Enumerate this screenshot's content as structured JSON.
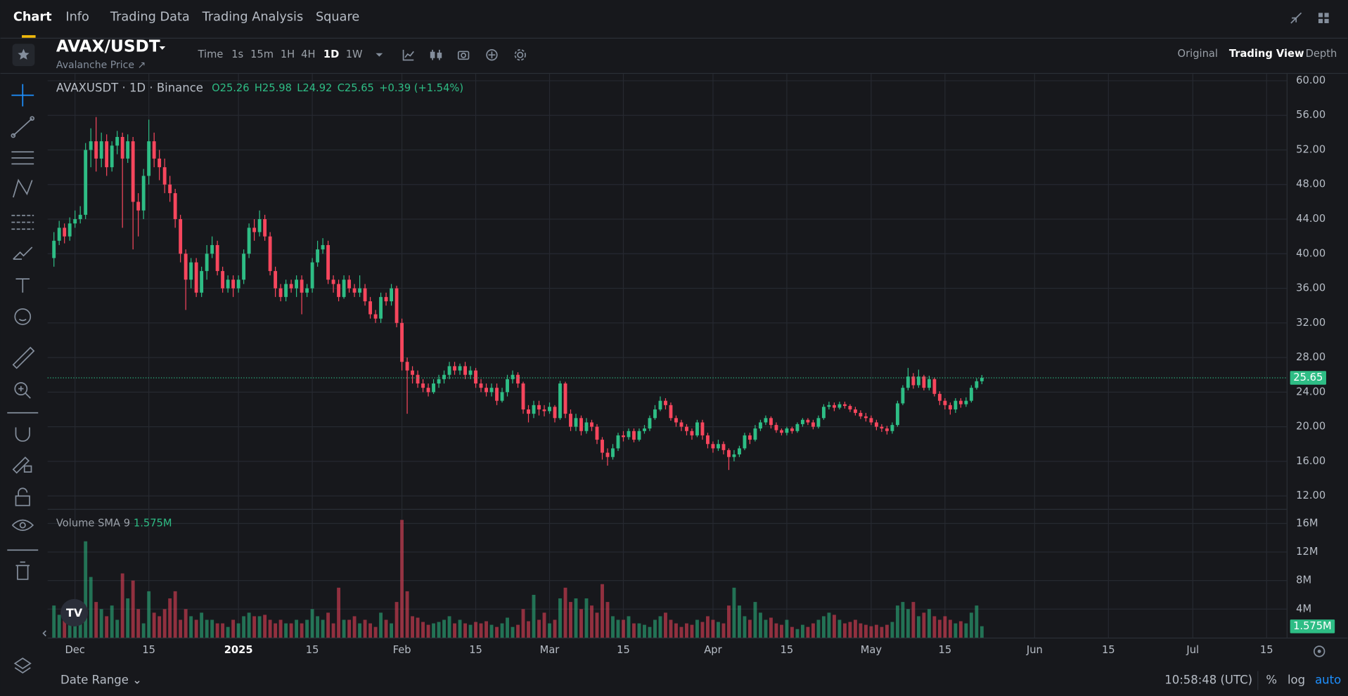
{
  "nav": {
    "tabs": [
      "Chart",
      "Info",
      "Trading Data",
      "Trading Analysis",
      "Square"
    ]
  },
  "header": {
    "pair": "AVAX/USDT",
    "subtitle": "Avalanche Price ↗",
    "intervals": [
      "Time",
      "1s",
      "15m",
      "1H",
      "4H",
      "1D",
      "1W"
    ],
    "views": [
      "Original",
      "Trading View",
      "Depth"
    ]
  },
  "chart_data": {
    "type": "candlestick",
    "title": "AVAXUSDT · 1D · Binance",
    "ohlc_legend": [
      "O25.26",
      "H25.98",
      "L24.92",
      "C25.65"
    ],
    "change_legend": "+0.39 (+1.54%)",
    "up_color": "#2ebd85",
    "down_color": "#f6465d",
    "grid": true,
    "open": [
      39.5,
      41.5,
      43,
      42,
      43.5,
      44,
      44.5,
      52,
      53,
      51,
      53,
      50,
      52.5,
      53.5,
      51,
      53,
      46,
      45,
      49,
      53,
      51,
      50,
      48,
      47,
      44,
      40,
      37,
      39,
      35.5,
      38,
      40,
      41,
      38,
      36,
      37,
      36,
      37,
      40,
      43,
      42.5,
      44,
      42,
      38,
      36,
      35,
      36.5,
      36,
      37,
      35.5,
      36,
      39,
      40.5,
      41,
      37,
      36.5,
      35,
      37,
      36,
      35.5,
      36,
      34.5,
      33,
      32.5,
      35,
      34.5,
      36,
      32,
      27.5,
      26.5,
      26,
      25,
      24.5,
      24,
      25,
      25.5,
      26,
      27,
      26.5,
      27,
      26,
      26.5,
      25,
      24.5,
      24,
      24.5,
      23,
      24,
      25.5,
      26,
      25,
      22,
      21.5,
      22.5,
      22,
      21.8,
      22.3,
      21,
      25,
      21.5,
      20,
      21,
      19.5,
      20.5,
      20,
      18.5,
      17,
      16.5,
      17.5,
      19,
      18.8,
      19.5,
      18.5,
      19.5,
      19.8,
      21,
      22,
      23,
      22.5,
      21,
      20.5,
      20,
      19.5,
      19,
      20.5,
      19,
      18,
      17.5,
      18,
      17.3,
      16.5,
      16.8,
      17.5,
      19,
      18.5,
      19.8,
      20.5,
      21,
      20.2,
      19.6,
      19.3,
      19.8,
      19.5,
      20.3,
      20.8,
      20.5,
      20,
      21,
      22.3,
      22.5,
      22.2,
      22.6,
      22.4,
      22,
      21.6,
      21.2,
      21,
      20.5,
      20,
      19.8,
      19.5,
      20.2,
      22.7,
      24.5,
      25.8,
      24.8,
      25.8,
      24.5,
      25.5,
      23.8,
      23,
      22.5,
      22,
      23,
      22.6,
      23,
      24.5,
      25.26
    ],
    "high": [
      42.5,
      43.8,
      43.5,
      44.2,
      45,
      45.5,
      52.8,
      54.5,
      55.8,
      54,
      53.8,
      53,
      54.2,
      54,
      53.8,
      53.5,
      47,
      49.8,
      55.5,
      54,
      52,
      51,
      49,
      47.5,
      44.5,
      40.5,
      39.5,
      39.5,
      38.5,
      41,
      42,
      41.5,
      38.5,
      37.5,
      37.5,
      37.5,
      40.5,
      43.5,
      44,
      45,
      44.5,
      42.5,
      38.5,
      36.5,
      37,
      37,
      37.5,
      37.5,
      36.5,
      39.5,
      41.5,
      41.8,
      41.5,
      37.5,
      37,
      37.5,
      37.5,
      36.5,
      37.5,
      36.5,
      35,
      33.5,
      35.5,
      35.5,
      36.5,
      36.3,
      32.5,
      28,
      27,
      26.5,
      25.5,
      25,
      25.5,
      26,
      26.5,
      27.5,
      27.5,
      27.3,
      27.5,
      27,
      26.8,
      25.5,
      25,
      25,
      25,
      24.5,
      26,
      26.5,
      26.3,
      25.2,
      22.5,
      23,
      23,
      22.5,
      22.8,
      22.5,
      25.3,
      25.2,
      22,
      21.5,
      21.3,
      21,
      20.8,
      20.3,
      18.8,
      17.5,
      18,
      19.3,
      19.5,
      19.8,
      19.8,
      19.8,
      20.2,
      21.3,
      22.5,
      23.5,
      23.3,
      22.8,
      21.3,
      20.8,
      20.3,
      19.8,
      20.8,
      20.8,
      19.3,
      18.3,
      18.5,
      18.3,
      17.5,
      17.3,
      17.8,
      19.3,
      19.3,
      20.2,
      20.8,
      21.3,
      21.2,
      20.5,
      19.8,
      20,
      20,
      20.5,
      21,
      21,
      20.8,
      21.3,
      22.6,
      22.9,
      22.8,
      22.9,
      22.9,
      22.6,
      22.3,
      21.9,
      21.6,
      21.3,
      20.8,
      20.3,
      20.1,
      20.5,
      23,
      24.8,
      26.8,
      26.2,
      26.6,
      26,
      25.9,
      25.7,
      24.1,
      23.3,
      22.8,
      23.3,
      23.3,
      23.4,
      24.8,
      25.6,
      25.98
    ],
    "low": [
      38.5,
      41,
      41.2,
      41.5,
      43,
      43.5,
      44,
      50,
      49.5,
      50,
      49,
      49.5,
      51.5,
      43,
      50.5,
      40.5,
      42,
      44,
      48,
      50,
      48.5,
      47,
      46,
      43,
      39,
      33.5,
      36,
      35,
      35,
      37,
      39.5,
      37.5,
      35.5,
      35.5,
      35,
      35.5,
      36.5,
      39.5,
      41.5,
      42,
      41.5,
      37.5,
      35,
      34.5,
      34.5,
      35.5,
      35,
      33,
      35,
      35.5,
      38.5,
      40,
      36.5,
      35.5,
      34.5,
      34.8,
      35.5,
      35,
      35,
      34,
      32.5,
      32,
      32,
      34,
      34,
      31.5,
      26.5,
      21.5,
      25,
      24.5,
      24,
      23.5,
      23.8,
      24.5,
      25,
      25.5,
      26,
      26,
      25.5,
      25.5,
      24.5,
      24,
      23.5,
      23.5,
      22.5,
      22.8,
      23.5,
      25,
      24.5,
      21.5,
      20.5,
      21,
      21.3,
      21.2,
      21.5,
      20.5,
      20.8,
      21,
      19.5,
      19.5,
      19,
      19.2,
      19.5,
      18,
      16.2,
      15.5,
      16.2,
      17.2,
      18.3,
      18.5,
      18.2,
      18.3,
      19.2,
      19.5,
      20.8,
      21.8,
      22,
      20.7,
      20,
      19.5,
      19,
      18.5,
      18.8,
      18.5,
      17.5,
      17,
      17.2,
      16.8,
      15,
      16,
      16.5,
      17.3,
      18,
      18.3,
      19.5,
      20.2,
      19.8,
      19.3,
      19,
      19,
      19.2,
      19.3,
      20,
      20.2,
      19.7,
      19.8,
      20.8,
      22,
      21.8,
      22,
      22.1,
      21.7,
      21.3,
      20.9,
      20.6,
      20.2,
      19.6,
      19.4,
      19.1,
      19.2,
      20,
      22.5,
      24.2,
      24.4,
      24.5,
      24.2,
      24.2,
      23.5,
      22.5,
      22,
      21.4,
      21.6,
      22.2,
      22.3,
      22.8,
      24.3,
      24.92
    ],
    "close": [
      41.5,
      43,
      42,
      43.5,
      44,
      44.5,
      52,
      53,
      51,
      53,
      50,
      52.5,
      53.5,
      51,
      53,
      46,
      45,
      49,
      53,
      51,
      50,
      48,
      47,
      44,
      40,
      37,
      39,
      35.5,
      38,
      40,
      41,
      38,
      36,
      37,
      36,
      37,
      40,
      43,
      42.5,
      44,
      42,
      38,
      36,
      35,
      36.5,
      36,
      37,
      35.5,
      36,
      39,
      40.5,
      41,
      37,
      36.5,
      35,
      37,
      36,
      35.5,
      36,
      34.5,
      33,
      32.5,
      35,
      34.5,
      36,
      32,
      27.5,
      26.5,
      26,
      25,
      24.5,
      24,
      25,
      25.5,
      26,
      27,
      26.5,
      27,
      26,
      26.5,
      25,
      24.5,
      24,
      24.5,
      23,
      24,
      25.5,
      26,
      25,
      22,
      21.5,
      22.5,
      22,
      21.8,
      22.3,
      21,
      25,
      21.5,
      20,
      21,
      19.5,
      20.5,
      20,
      18.5,
      17,
      16.5,
      17.5,
      19,
      18.8,
      19.5,
      18.5,
      19.5,
      19.8,
      21,
      22,
      23,
      22.5,
      21,
      20.5,
      20,
      19.5,
      19,
      20.5,
      19,
      18,
      17.5,
      18,
      17.3,
      16.5,
      16.8,
      17.5,
      19,
      18.5,
      19.8,
      20.5,
      21,
      20.2,
      19.6,
      19.3,
      19.8,
      19.5,
      20.3,
      20.8,
      20.5,
      20,
      21,
      22.3,
      22.5,
      22.2,
      22.6,
      22.4,
      22,
      21.6,
      21.2,
      21,
      20.5,
      20,
      19.8,
      19.5,
      20.2,
      22.7,
      24.5,
      25.8,
      24.8,
      25.8,
      24.5,
      25.5,
      23.8,
      23,
      22.5,
      22,
      23,
      22.6,
      23,
      24.5,
      25.26,
      25.65
    ],
    "xlim": [
      -1.2,
      233.8
    ],
    "xticks": [
      {
        "value": 4,
        "label": "Dec"
      },
      {
        "value": 18,
        "label": "15"
      },
      {
        "value": 35,
        "label": "2025"
      },
      {
        "value": 49,
        "label": "15"
      },
      {
        "value": 66,
        "label": "Feb"
      },
      {
        "value": 80,
        "label": "15"
      },
      {
        "value": 94,
        "label": "Mar"
      },
      {
        "value": 108,
        "label": "15"
      },
      {
        "value": 125,
        "label": "Apr"
      },
      {
        "value": 139,
        "label": "15"
      },
      {
        "value": 155,
        "label": "May"
      },
      {
        "value": 169,
        "label": "15"
      },
      {
        "value": 186,
        "label": "Jun"
      },
      {
        "value": 200,
        "label": "15"
      },
      {
        "value": 216,
        "label": "Jul"
      },
      {
        "value": 230,
        "label": "15"
      }
    ],
    "ylim": [
      10.6,
      60.8
    ],
    "yticks": [
      {
        "value": 60,
        "label": "60.00"
      },
      {
        "value": 56,
        "label": "56.00"
      },
      {
        "value": 52,
        "label": "52.00"
      },
      {
        "value": 48,
        "label": "48.00"
      },
      {
        "value": 44,
        "label": "44.00"
      },
      {
        "value": 40,
        "label": "40.00"
      },
      {
        "value": 36,
        "label": "36.00"
      },
      {
        "value": 32,
        "label": "32.00"
      },
      {
        "value": 28,
        "label": "28.00"
      },
      {
        "value": 24,
        "label": "24.00"
      },
      {
        "value": 20,
        "label": "20.00"
      },
      {
        "value": 16,
        "label": "16.00"
      },
      {
        "value": 12,
        "label": "12.00"
      }
    ],
    "last_price": {
      "value": 25.65,
      "label": "25.65"
    },
    "volume": {
      "title": "Volume SMA 9",
      "sma": 1.575,
      "sma_label": "1.575M",
      "ylim": [
        0,
        17.8
      ],
      "yticks": [
        {
          "value": 16,
          "label": "16M"
        },
        {
          "value": 12,
          "label": "12M"
        },
        {
          "value": 8,
          "label": "8M"
        },
        {
          "value": 4,
          "label": "4M"
        }
      ],
      "values": [
        4.5,
        3.2,
        2.8,
        2.5,
        3.5,
        2,
        13.5,
        8.5,
        5,
        4,
        3,
        4.5,
        2.5,
        9,
        5.5,
        8,
        4,
        2,
        6.5,
        3.5,
        3,
        4,
        5.5,
        6.5,
        2.5,
        4,
        3,
        2.5,
        3.5,
        2.5,
        2.5,
        2,
        2,
        1.5,
        2.5,
        2,
        3,
        3.5,
        3,
        3,
        3.2,
        2.5,
        2,
        2.5,
        2,
        2,
        2.5,
        2,
        2.5,
        4,
        3,
        2.5,
        3.5,
        2,
        7,
        2.5,
        2.5,
        3,
        2,
        2.5,
        2,
        1.5,
        3.5,
        2.5,
        2,
        5,
        16.5,
        6.5,
        3,
        2.8,
        2.2,
        1.8,
        2,
        2.2,
        2.5,
        3,
        2,
        2.5,
        2,
        1.8,
        2.2,
        2,
        2.3,
        1.8,
        1.5,
        2,
        2.8,
        1.5,
        1.8,
        4,
        2.3,
        6,
        2.5,
        3.5,
        2,
        2.5,
        5.5,
        7,
        5,
        5.5,
        4,
        5.5,
        4.5,
        3.5,
        7.5,
        5,
        3,
        2.5,
        2.5,
        3,
        2,
        2,
        1.8,
        1.5,
        2.5,
        3,
        3.5,
        2.5,
        2,
        1.5,
        2,
        1.8,
        2.5,
        2.2,
        3,
        2.5,
        2.2,
        2,
        4.5,
        7,
        4.5,
        3,
        2.5,
        5,
        3.5,
        2.5,
        2.8,
        2,
        1.8,
        2.5,
        1.5,
        1.2,
        1.8,
        1.5,
        2,
        2.5,
        3,
        3.5,
        3.2,
        2.5,
        2,
        2.2,
        2.5,
        2,
        1.8,
        1.6,
        1.8,
        1.5,
        1.8,
        2.2,
        4.5,
        5,
        4,
        5,
        3,
        3.5,
        4,
        3,
        2.5,
        3,
        2.5,
        2,
        2.3,
        2,
        3.5,
        4.5,
        1.6
      ]
    }
  },
  "footer": {
    "date_range": "Date Range ⌄",
    "time": "10:58:48 (UTC)",
    "scale": [
      "%",
      "log",
      "auto"
    ]
  }
}
